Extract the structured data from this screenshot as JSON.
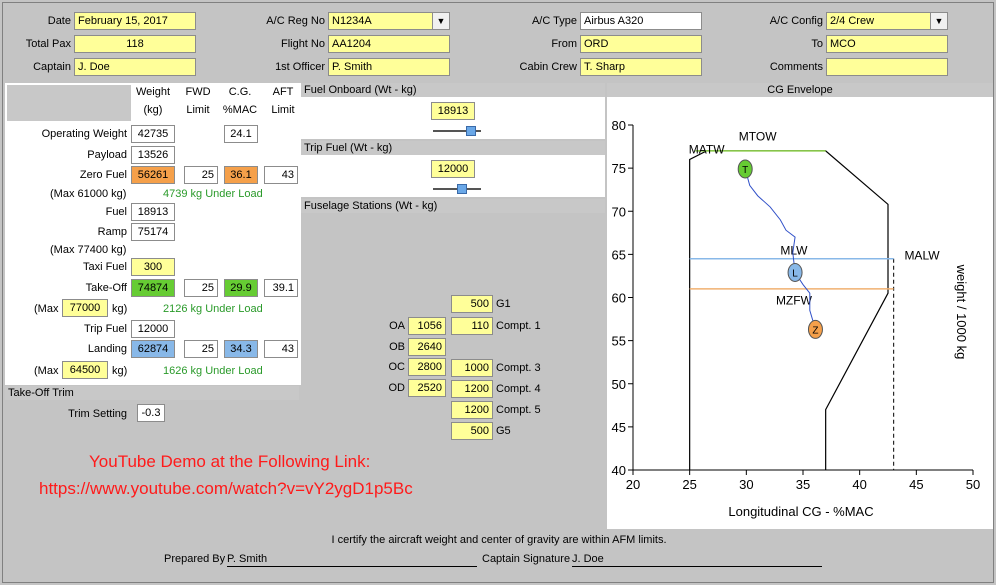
{
  "header": {
    "date_label": "Date",
    "date": "February 15, 2017",
    "acreg_label": "A/C Reg No",
    "acreg": "N1234A",
    "actype_label": "A/C Type",
    "actype": "Airbus A320",
    "acconfig_label": "A/C Config",
    "acconfig": "2/4 Crew",
    "pax_label": "Total Pax",
    "pax": "118",
    "flight_label": "Flight No",
    "flight": "AA1204",
    "from_label": "From",
    "from": "ORD",
    "to_label": "To",
    "to": "MCO",
    "captain_label": "Captain",
    "captain": "J. Doe",
    "fo_label": "1st Officer",
    "fo": "P. Smith",
    "cabin_label": "Cabin Crew",
    "cabin": "T. Sharp",
    "comments_label": "Comments",
    "comments": ""
  },
  "weights": {
    "col_weight": "Weight",
    "col_weight_unit": "(kg)",
    "col_fwd": "FWD",
    "col_fwd_sub": "Limit",
    "col_cg": "C.G.",
    "col_cg_sub": "%MAC",
    "col_aft": "AFT",
    "col_aft_sub": "Limit",
    "op_label": "Operating Weight",
    "op_wt": "42735",
    "op_cg": "24.1",
    "payload_label": "Payload",
    "payload": "13526",
    "zf_label": "Zero Fuel",
    "zf_wt": "56261",
    "zf_fwd": "25",
    "zf_cg": "36.1",
    "zf_aft": "43",
    "zf_max": "(Max 61000 kg)",
    "zf_margin": "4739 kg Under Load",
    "fuel_label": "Fuel",
    "fuel": "18913",
    "ramp_label": "Ramp",
    "ramp": "75174",
    "ramp_max": "(Max 77400 kg)",
    "taxi_label": "Taxi Fuel",
    "taxi": "300",
    "to_label": "Take-Off",
    "to_wt": "74874",
    "to_fwd": "25",
    "to_cg": "29.9",
    "to_aft": "39.1",
    "to_max_pre": "(Max",
    "to_max": "77000",
    "to_max_post": "kg)",
    "to_margin": "2126 kg Under Load",
    "trip_label": "Trip Fuel",
    "trip": "12000",
    "ldg_label": "Landing",
    "ldg_wt": "62874",
    "ldg_fwd": "25",
    "ldg_cg": "34.3",
    "ldg_aft": "43",
    "ldg_max_pre": "(Max",
    "ldg_max": "64500",
    "ldg_max_post": "kg)",
    "ldg_margin": "1626 kg Under Load"
  },
  "trim": {
    "title": "Take-Off Trim",
    "label": "Trim Setting",
    "value": "-0.3"
  },
  "demo": {
    "line1": "YouTube Demo at the Following Link:",
    "line2": "https://www.youtube.com/watch?v=vY2ygD1p5Bc"
  },
  "fuel_onboard": {
    "title": "Fuel Onboard (Wt - kg)",
    "value": "18913",
    "slider": 0.8
  },
  "trip_fuel": {
    "title": "Trip Fuel (Wt - kg)",
    "value": "12000",
    "slider": 0.6
  },
  "stations": {
    "title": "Fuselage Stations (Wt - kg)",
    "g1": "500",
    "g1_label": "G1",
    "oa_label": "OA",
    "oa": "1056",
    "c1": "110",
    "c1_label": "Compt. 1",
    "ob_label": "OB",
    "ob": "2640",
    "oc_label": "OC",
    "oc": "2800",
    "c3": "1000",
    "c3_label": "Compt. 3",
    "od_label": "OD",
    "od": "2520",
    "c4": "1200",
    "c4_label": "Compt. 4",
    "c5": "1200",
    "c5_label": "Compt. 5",
    "g5": "500",
    "g5_label": "G5"
  },
  "chart_data": {
    "type": "line",
    "title": "CG Envelope",
    "xlabel": "Longitudinal CG - %MAC",
    "ylabel": "weight / 1000 kg",
    "xlim": [
      20,
      50
    ],
    "ylim": [
      40,
      80
    ],
    "xticks": [
      20,
      25,
      30,
      35,
      40,
      45,
      50
    ],
    "yticks": [
      40,
      45,
      50,
      55,
      60,
      65,
      70,
      75,
      80
    ],
    "envelope": [
      [
        25,
        40
      ],
      [
        25,
        76
      ],
      [
        26.5,
        77
      ],
      [
        37,
        77
      ],
      [
        42.5,
        70.8
      ],
      [
        42.5,
        60.5
      ],
      [
        37,
        47
      ],
      [
        37,
        40
      ]
    ],
    "limits": [
      {
        "name": "MTOW",
        "value": 77,
        "color": "#88cc44",
        "x": [
          25.5,
          37
        ]
      },
      {
        "name": "MALW",
        "value": 64.5,
        "color": "#88b8e8",
        "x": [
          25,
          43
        ]
      },
      {
        "name": "MZFW",
        "value": 61,
        "color": "#f0b070",
        "x": [
          25,
          43
        ]
      }
    ],
    "matw_label": "MATW",
    "aft_limit_x": 43,
    "points": [
      {
        "label": "T",
        "x": 29.9,
        "y": 74.9,
        "color": "#66cc33"
      },
      {
        "label": "L",
        "x": 34.3,
        "y": 62.9,
        "color": "#88b8e8"
      },
      {
        "label": "Z",
        "x": 36.1,
        "y": 56.3,
        "color": "#f5a04a"
      }
    ],
    "path": [
      [
        29.9,
        74.9
      ],
      [
        30.3,
        73
      ],
      [
        31,
        71.8
      ],
      [
        32.1,
        70.5
      ],
      [
        33,
        69
      ],
      [
        33.5,
        67.8
      ],
      [
        34.3,
        67
      ],
      [
        34.1,
        65.2
      ],
      [
        34.3,
        62.9
      ],
      [
        35,
        61.5
      ],
      [
        35.6,
        60.5
      ],
      [
        35.6,
        58.5
      ],
      [
        36.1,
        56.3
      ]
    ],
    "annotations": [
      "MTOW",
      "MATW",
      "MLW",
      "MALW",
      "MZFW"
    ]
  },
  "footer": {
    "certify": "I certify the aircraft weight and center of gravity are within AFM limits.",
    "prepared_label": "Prepared By",
    "prepared": "P. Smith",
    "captain_sig_label": "Captain Signature",
    "captain_sig": "J. Doe"
  }
}
